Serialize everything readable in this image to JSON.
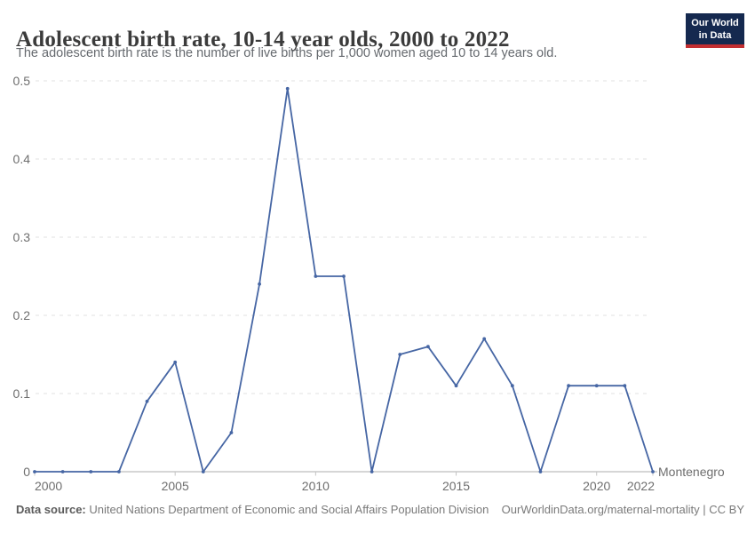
{
  "header": {
    "title": "Adolescent birth rate, 10-14 year olds, 2000 to 2022",
    "subtitle": "The adolescent birth rate is the number of live births per 1,000 women aged 10 to 14 years old.",
    "logo_line1": "Our World",
    "logo_line2": "in Data"
  },
  "chart_data": {
    "type": "line",
    "title": "Adolescent birth rate, 10-14 year olds, 2000 to 2022",
    "xlabel": "",
    "ylabel": "",
    "x": [
      2000,
      2001,
      2002,
      2003,
      2004,
      2005,
      2006,
      2007,
      2008,
      2009,
      2010,
      2011,
      2012,
      2013,
      2014,
      2015,
      2016,
      2017,
      2018,
      2019,
      2020,
      2021,
      2022
    ],
    "series": [
      {
        "name": "Montenegro",
        "color": "#4666a4",
        "values": [
          0,
          0,
          0,
          0,
          0.09,
          0.14,
          0,
          0.05,
          0.24,
          0.49,
          0.25,
          0.25,
          0,
          0.15,
          0.16,
          0.11,
          0.17,
          0.11,
          0,
          0.11,
          0.11,
          0.11,
          0
        ]
      }
    ],
    "x_tick_labels": [
      "2000",
      "2005",
      "2010",
      "2015",
      "2020",
      "2022"
    ],
    "x_tick_years": [
      2000,
      2005,
      2010,
      2015,
      2020,
      2022
    ],
    "y_tick_labels": [
      "0",
      "0.1",
      "0.2",
      "0.3",
      "0.4",
      "0.5"
    ],
    "y_ticks": [
      0,
      0.1,
      0.2,
      0.3,
      0.4,
      0.5
    ],
    "xlim": [
      2000,
      2022
    ],
    "ylim": [
      0,
      0.5
    ],
    "grid": "horizontal-dashed",
    "legend_position": "end-of-line",
    "entity_label": "Montenegro"
  },
  "footer": {
    "source_label": "Data source:",
    "source_text": " United Nations Department of Economic and Social Affairs Population Division",
    "link_text": "OurWorldinData.org/maternal-mortality | CC BY"
  },
  "colors": {
    "line": "#4666a4",
    "entity_label": "#4666a4",
    "grid": "#e0e0e0",
    "axis": "#adadad",
    "tick": "#c4c4c4",
    "axis_text": "#6e6e6e",
    "logo_bg": "#15294f",
    "logo_stripe": "#c32e31"
  }
}
